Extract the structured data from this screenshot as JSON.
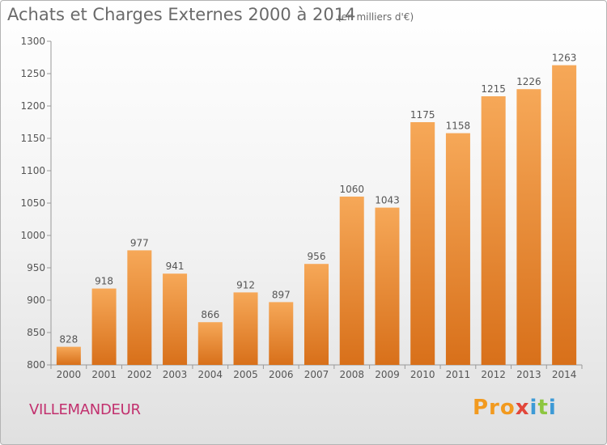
{
  "chart_data": {
    "type": "bar",
    "title": "Achats et Charges Externes 2000 à 2014",
    "subtitle": "(en milliers d'€)",
    "categories": [
      "2000",
      "2001",
      "2002",
      "2003",
      "2004",
      "2005",
      "2006",
      "2007",
      "2008",
      "2009",
      "2010",
      "2011",
      "2012",
      "2013",
      "2014"
    ],
    "values": [
      828,
      918,
      977,
      941,
      866,
      912,
      897,
      956,
      1060,
      1043,
      1175,
      1158,
      1215,
      1226,
      1263
    ],
    "ylim": [
      800,
      1300
    ],
    "yticks": [
      800,
      850,
      900,
      950,
      1000,
      1050,
      1100,
      1150,
      1200,
      1250,
      1300
    ],
    "grid": false,
    "bar_color": "#e8862a"
  },
  "commune": "VILLEMANDEUR",
  "logo": {
    "p1": "Pro",
    "p2": "x",
    "p3": "i",
    "p4": "t",
    "p5": "i"
  }
}
